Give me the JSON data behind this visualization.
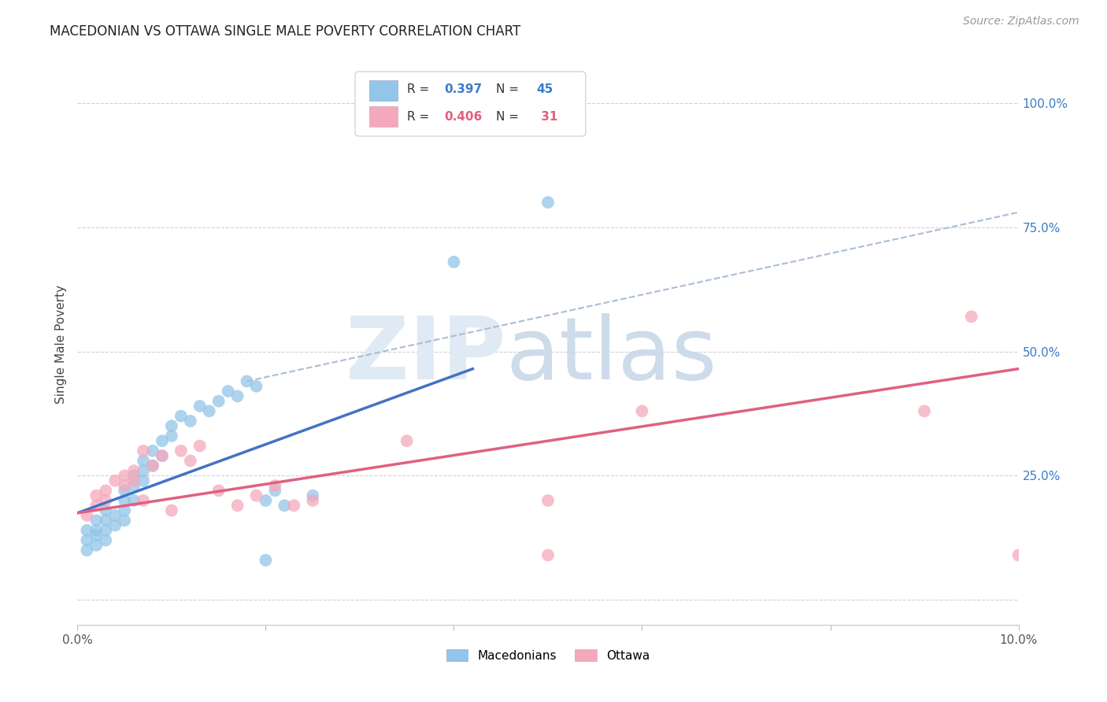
{
  "title": "MACEDONIAN VS OTTAWA SINGLE MALE POVERTY CORRELATION CHART",
  "source": "Source: ZipAtlas.com",
  "ylabel": "Single Male Poverty",
  "xlim": [
    0.0,
    0.1
  ],
  "ylim": [
    -0.05,
    1.08
  ],
  "ytick_values": [
    0.0,
    0.25,
    0.5,
    0.75,
    1.0
  ],
  "xtick_values": [
    0.0,
    0.02,
    0.04,
    0.06,
    0.08,
    0.1
  ],
  "blue_color": "#92c5e8",
  "pink_color": "#f5a8bc",
  "trendline_blue_color": "#4472c4",
  "trendline_pink_color": "#e06080",
  "dashed_line_color": "#aabdd4",
  "background_color": "#ffffff",
  "blue_R": "0.397",
  "blue_N": "45",
  "pink_R": "0.406",
  "pink_N": "31",
  "blue_scatter_x": [
    0.001,
    0.001,
    0.001,
    0.002,
    0.002,
    0.002,
    0.002,
    0.003,
    0.003,
    0.003,
    0.003,
    0.004,
    0.004,
    0.005,
    0.005,
    0.005,
    0.005,
    0.006,
    0.006,
    0.006,
    0.007,
    0.007,
    0.007,
    0.008,
    0.008,
    0.009,
    0.009,
    0.01,
    0.01,
    0.011,
    0.012,
    0.013,
    0.014,
    0.015,
    0.016,
    0.017,
    0.018,
    0.019,
    0.02,
    0.021,
    0.022,
    0.025,
    0.04,
    0.05,
    0.02
  ],
  "blue_scatter_y": [
    0.14,
    0.12,
    0.1,
    0.16,
    0.14,
    0.13,
    0.11,
    0.18,
    0.16,
    0.14,
    0.12,
    0.17,
    0.15,
    0.22,
    0.2,
    0.18,
    0.16,
    0.25,
    0.23,
    0.2,
    0.28,
    0.26,
    0.24,
    0.3,
    0.27,
    0.32,
    0.29,
    0.35,
    0.33,
    0.37,
    0.36,
    0.39,
    0.38,
    0.4,
    0.42,
    0.41,
    0.44,
    0.43,
    0.2,
    0.22,
    0.19,
    0.21,
    0.68,
    0.8,
    0.08
  ],
  "pink_scatter_x": [
    0.001,
    0.002,
    0.002,
    0.003,
    0.003,
    0.004,
    0.005,
    0.005,
    0.006,
    0.006,
    0.007,
    0.008,
    0.009,
    0.01,
    0.011,
    0.012,
    0.013,
    0.015,
    0.017,
    0.019,
    0.021,
    0.023,
    0.025,
    0.05,
    0.05,
    0.09,
    0.095,
    0.1,
    0.06,
    0.035,
    0.007
  ],
  "pink_scatter_y": [
    0.17,
    0.19,
    0.21,
    0.2,
    0.22,
    0.24,
    0.25,
    0.23,
    0.26,
    0.24,
    0.2,
    0.27,
    0.29,
    0.18,
    0.3,
    0.28,
    0.31,
    0.22,
    0.19,
    0.21,
    0.23,
    0.19,
    0.2,
    0.2,
    0.09,
    0.38,
    0.57,
    0.09,
    0.38,
    0.32,
    0.3
  ],
  "blue_line_x": [
    0.0,
    0.042
  ],
  "blue_line_y": [
    0.175,
    0.465
  ],
  "pink_line_x": [
    0.0,
    0.1
  ],
  "pink_line_y": [
    0.175,
    0.465
  ],
  "dashed_line_x": [
    0.018,
    0.1
  ],
  "dashed_line_y": [
    0.44,
    0.78
  ]
}
